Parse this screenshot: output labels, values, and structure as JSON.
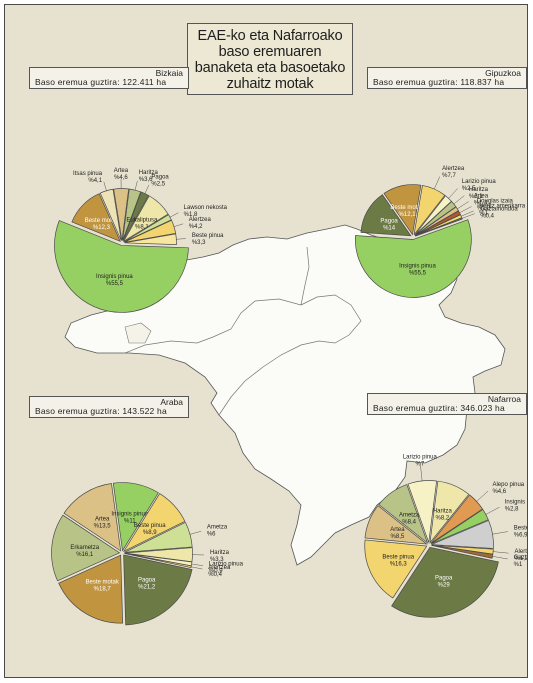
{
  "title_lines": [
    "EAE-ko eta Nafarroako",
    "baso eremuaren",
    "banaketa eta basoetako",
    "zuhaitz motak"
  ],
  "colors": {
    "background": "#e6e2cf",
    "land": "#fbfbf7",
    "insignis": "#96cf62",
    "pagoa": "#6c7a45",
    "beste": "#c19540",
    "yellow": "#f2d56e",
    "tan": "#dcc187",
    "pale": "#eee7a9",
    "light_green": "#cde095",
    "olive_light": "#b8c487",
    "orange": "#e09a52",
    "grey": "#cfcfcf",
    "red_brown": "#ad5930",
    "cream": "#f7f1c6"
  },
  "chart_data": [
    {
      "type": "pie",
      "region": "Bizkaia",
      "area_label": "Baso eremua guztira: 122.411 ha",
      "total_ha": 122411,
      "slices": [
        {
          "value": 55.5,
          "label": "Insignis pinua",
          "pct": "%55,5",
          "color": "#96cf62"
        },
        {
          "value": 12.3,
          "label": "Beste motak",
          "pct": "%12,3",
          "color": "#c19540"
        },
        {
          "value": 4.1,
          "label": "Itsas pinua",
          "pct": "%4,1",
          "color": "#ede3b6"
        },
        {
          "value": 4.6,
          "label": "Artea",
          "pct": "%4,6",
          "color": "#dcc187"
        },
        {
          "value": 3.6,
          "label": "Haritza",
          "pct": "%3,6",
          "color": "#b8c487"
        },
        {
          "value": 2.5,
          "label": "Pagoa",
          "pct": "%2,5",
          "color": "#6c7a45"
        },
        {
          "value": 8.1,
          "label": "Eukaliptusa",
          "pct": "%8,1",
          "color": "#eee7a9"
        },
        {
          "value": 1.8,
          "label": "Lawson nekosta",
          "pct": "%1,8",
          "color": "#cde095"
        },
        {
          "value": 4.2,
          "label": "Alertzea",
          "pct": "%4,2",
          "color": "#f2d56e"
        },
        {
          "value": 3.3,
          "label": "Beste pinua",
          "pct": "%3,3",
          "color": "#f7e6a0"
        }
      ]
    },
    {
      "type": "pie",
      "region": "Gipuzkoa",
      "area_label": "Baso eremua guztira: 118.837 ha",
      "total_ha": 118837,
      "slices": [
        {
          "value": 55.5,
          "label": "Insignis pinua",
          "pct": "%55,5",
          "color": "#96cf62"
        },
        {
          "value": 14,
          "label": "Pagoa",
          "pct": "%14",
          "color": "#6c7a45"
        },
        {
          "value": 12.1,
          "label": "Beste motak",
          "pct": "%12,1",
          "color": "#c19540"
        },
        {
          "value": 7.7,
          "label": "Alertzea",
          "pct": "%7,7",
          "color": "#f2d56e"
        },
        {
          "value": 2.5,
          "label": "Larizio pinua",
          "pct": "%2,5",
          "color": "#f7f1c6"
        },
        {
          "value": 2.1,
          "label": "Haritza",
          "pct": "%2,1",
          "color": "#b8c487"
        },
        {
          "value": 1.4,
          "label": "Artea",
          "pct": "%1,4",
          "color": "#dcc187"
        },
        {
          "value": 1.3,
          "label": "Douglas izaia",
          "pct": "%1,3",
          "color": "#ad5930"
        },
        {
          "value": 1,
          "label": "Haritz amerikarra",
          "pct": "%1",
          "color": "#eedc7a"
        },
        {
          "value": 0.4,
          "label": "Gaztainondoa",
          "pct": "%0,4",
          "color": "#9a6a3a"
        }
      ]
    },
    {
      "type": "pie",
      "region": "Araba",
      "area_label": "Baso eremua guztira: 143.522 ha",
      "total_ha": 143522,
      "slices": [
        {
          "value": 21.2,
          "label": "Pagoa",
          "pct": "%21,2",
          "color": "#6c7a45"
        },
        {
          "value": 18.7,
          "label": "Beste motak",
          "pct": "%18,7",
          "color": "#c19540"
        },
        {
          "value": 16.1,
          "label": "Erkametza",
          "pct": "%16,1",
          "color": "#b8c487"
        },
        {
          "value": 13.5,
          "label": "Artea",
          "pct": "%13,5",
          "color": "#dcc187"
        },
        {
          "value": 11,
          "label": "Insignis pinua",
          "pct": "%11",
          "color": "#96cf62"
        },
        {
          "value": 8.9,
          "label": "Beste pinua",
          "pct": "%8,9",
          "color": "#f2d56e"
        },
        {
          "value": 6,
          "label": "Ametza",
          "pct": "%6",
          "color": "#cde095"
        },
        {
          "value": 3.3,
          "label": "Haritza",
          "pct": "%3,3",
          "color": "#eee7a9"
        },
        {
          "value": 0.9,
          "label": "Larizio pinua",
          "pct": "%0,9",
          "color": "#f7f1c6"
        },
        {
          "value": 0.4,
          "label": "Alertzea",
          "pct": "%0,4",
          "color": "#f2d56e"
        }
      ]
    },
    {
      "type": "pie",
      "region": "Nafarroa",
      "area_label": "Baso eremua guztira: 346.023 ha",
      "total_ha": 346023,
      "slices": [
        {
          "value": 29,
          "label": "Pagoa",
          "pct": "%29",
          "color": "#6c7a45"
        },
        {
          "value": 16.3,
          "label": "Beste pinua",
          "pct": "%16,3",
          "color": "#f2d56e"
        },
        {
          "value": 8.5,
          "label": "Artea",
          "pct": "%8,5",
          "color": "#dcc187"
        },
        {
          "value": 8.4,
          "label": "Ametza",
          "pct": "%8,4",
          "color": "#b8c487"
        },
        {
          "value": 7,
          "label": "Larizio pinua",
          "pct": "%7",
          "color": "#f7f1c6"
        },
        {
          "value": 8.2,
          "label": "Haritza",
          "pct": "%8,2",
          "color": "#eee7a9"
        },
        {
          "value": 4.6,
          "label": "Alepo pinua",
          "pct": "%4,6",
          "color": "#e09a52"
        },
        {
          "value": 2.8,
          "label": "Insignis pinua",
          "pct": "%2,8",
          "color": "#96cf62"
        },
        {
          "value": 6.9,
          "label": "Beste motak",
          "pct": "%6,9",
          "color": "#cfcfcf"
        },
        {
          "value": 1.2,
          "label": "Alertzea",
          "pct": "%1,2",
          "color": "#f2d56e"
        },
        {
          "value": 1,
          "label": "Gaztainondoa",
          "pct": "%1",
          "color": "#9a6a3a"
        }
      ]
    }
  ]
}
